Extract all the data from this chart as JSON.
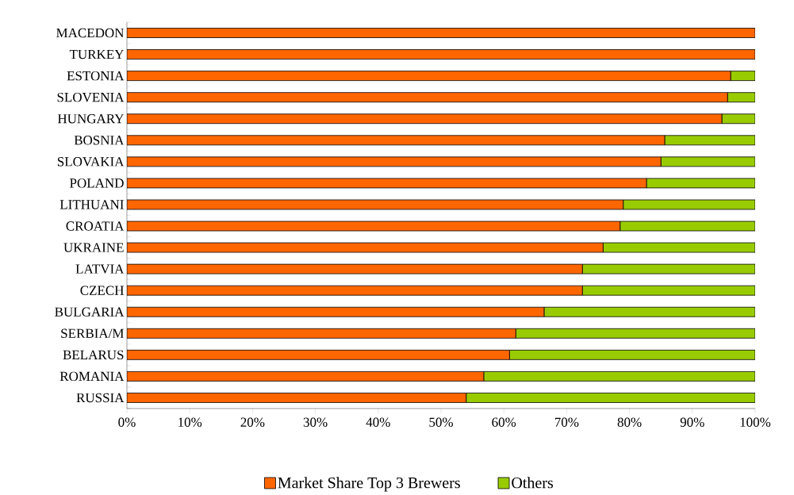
{
  "chart_data": {
    "type": "bar",
    "orientation": "horizontal",
    "stacked": true,
    "categories": [
      "MACEDON",
      "TURKEY",
      "ESTONIA",
      "SLOVENIA",
      "HUNGARY",
      "BOSNIA",
      "SLOVAKIA",
      "POLAND",
      "LITHUANI",
      "CROATIA",
      "UKRAINE",
      "LATVIA",
      "CZECH",
      "BULGARIA",
      "SERBIA/M",
      "BELARUS",
      "ROMANIA",
      "RUSSIA"
    ],
    "series": [
      {
        "name": "Market Share Top 3 Brewers",
        "color": "#ff6600",
        "values": [
          100,
          100,
          96.1,
          95.6,
          94.7,
          85.6,
          85,
          82.7,
          79,
          78.5,
          75.8,
          72.5,
          72.5,
          66.4,
          61.9,
          60.9,
          56.8,
          54
        ]
      },
      {
        "name": "Others",
        "color": "#99cc00",
        "values": [
          0,
          0,
          3.9,
          4.4,
          5.3,
          14.4,
          15,
          17.3,
          21,
          21.5,
          24.2,
          27.5,
          27.5,
          33.6,
          38.1,
          39.1,
          43.2,
          46
        ]
      }
    ],
    "xlim": [
      0,
      100
    ],
    "xticks": [
      {
        "value": 0,
        "label": "0%"
      },
      {
        "value": 10,
        "label": "10%"
      },
      {
        "value": 20,
        "label": "20%"
      },
      {
        "value": 30,
        "label": "30%"
      },
      {
        "value": 40,
        "label": "40%"
      },
      {
        "value": 50,
        "label": "50%"
      },
      {
        "value": 60,
        "label": "60%"
      },
      {
        "value": 70,
        "label": "70%"
      },
      {
        "value": 80,
        "label": "80%"
      },
      {
        "value": 90,
        "label": "90%"
      },
      {
        "value": 100,
        "label": "100%"
      }
    ],
    "legend": "bottom",
    "grid": false
  }
}
